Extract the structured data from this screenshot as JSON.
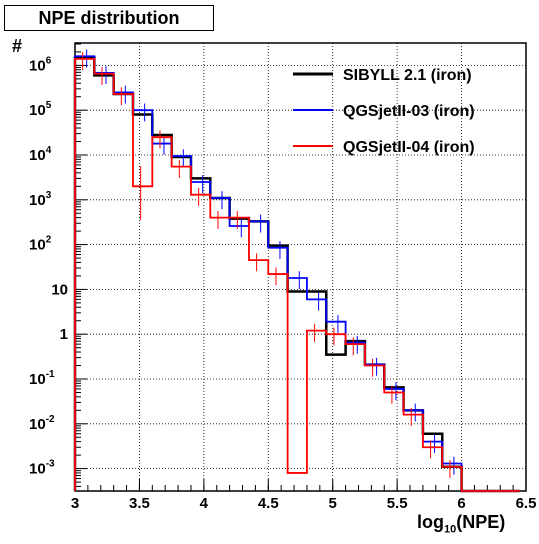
{
  "chart_data": {
    "type": "histogram",
    "title": "NPE distribution",
    "ylabel": "#",
    "xlabel_main": "log",
    "xlabel_sub": "10",
    "xlabel_tail": "(NPE)",
    "xlim": [
      3,
      6.5
    ],
    "ylim_log10": [
      -3.5,
      6.5
    ],
    "yscale": "log",
    "grid": true,
    "legend_position": "top-right",
    "x_ticks": [
      "3",
      "3.5",
      "4",
      "4.5",
      "5",
      "5.5",
      "6",
      "6.5"
    ],
    "y_ticks": [
      {
        "base": "10",
        "exp": "-3",
        "log": -3
      },
      {
        "base": "10",
        "exp": "-2",
        "log": -2
      },
      {
        "base": "10",
        "exp": "-1",
        "log": -1
      },
      {
        "base": "1",
        "exp": "",
        "log": 0
      },
      {
        "base": "10",
        "exp": "",
        "log": 1
      },
      {
        "base": "10",
        "exp": "2",
        "log": 2
      },
      {
        "base": "10",
        "exp": "3",
        "log": 3
      },
      {
        "base": "10",
        "exp": "4",
        "log": 4
      },
      {
        "base": "10",
        "exp": "5",
        "log": 5
      },
      {
        "base": "10",
        "exp": "6",
        "log": 6
      }
    ],
    "bin_edges": [
      3.0,
      3.15,
      3.3,
      3.45,
      3.6,
      3.75,
      3.9,
      4.05,
      4.2,
      4.35,
      4.5,
      4.65,
      4.8,
      4.95,
      5.1,
      5.25,
      5.4,
      5.55,
      5.7,
      5.85,
      6.0,
      6.15,
      6.3,
      6.45
    ],
    "series": [
      {
        "name": "SIBYLL 2.1 (iron)",
        "color": "#000000",
        "values": [
          1500000,
          600000,
          230000,
          80000,
          28000,
          9000,
          3000,
          1100,
          380,
          330,
          95,
          9,
          9,
          0.35,
          0.7,
          0.21,
          0.065,
          0.02,
          0.006,
          0.0011,
          0.0003,
          0.0003,
          0.0003
        ]
      },
      {
        "name": "QGSjetII-03 (iron)",
        "color": "#0000ff",
        "values": [
          1600000,
          680000,
          250000,
          100000,
          18000,
          9500,
          2500,
          1100,
          260,
          330,
          85,
          18,
          6,
          1.9,
          0.65,
          0.21,
          0.06,
          0.02,
          0.004,
          0.0013,
          0.0003,
          0.0003,
          0.0003
        ]
      },
      {
        "name": "QGSjetII-04 (iron)",
        "color": "#ff0000",
        "values": [
          1400000,
          650000,
          230000,
          2000,
          25000,
          5500,
          1300,
          400,
          400,
          45,
          22,
          0.0008,
          1.2,
          1.0,
          0.6,
          0.2,
          0.05,
          0.016,
          0.003,
          0.0011,
          0.0003,
          0.0003,
          0.0003
        ]
      }
    ]
  }
}
